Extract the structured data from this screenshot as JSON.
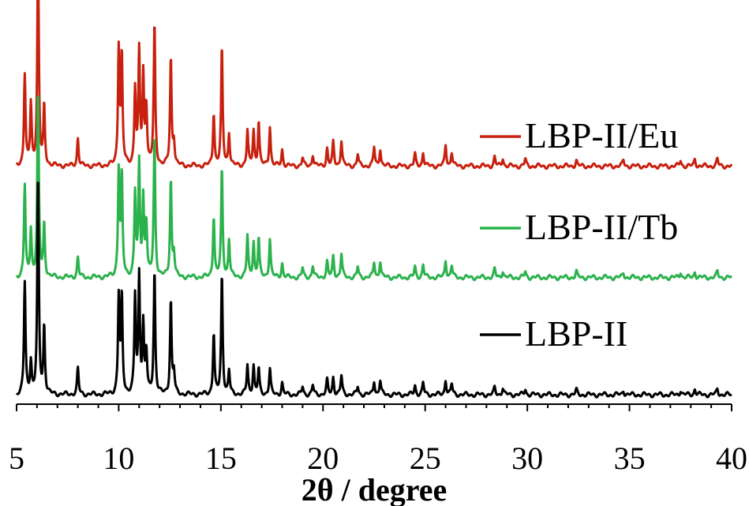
{
  "chart_data": {
    "type": "line",
    "title": "",
    "xlabel": "2θ / degree",
    "ylabel": "",
    "xlim": [
      5,
      40
    ],
    "ylim": [
      0,
      3.3
    ],
    "x_ticks": [
      "5",
      "10",
      "15",
      "20",
      "25",
      "30",
      "35",
      "40"
    ],
    "grid": false,
    "legend_position": "right",
    "series": [
      {
        "name": "LBP-II/Eu",
        "color": "#c8200e",
        "offset": 1.95,
        "peaks": [
          [
            5.4,
            0.78
          ],
          [
            5.7,
            0.52
          ],
          [
            6.05,
            1.8
          ],
          [
            6.35,
            0.5
          ],
          [
            8.0,
            0.24
          ],
          [
            10.0,
            1.0
          ],
          [
            10.15,
            0.92
          ],
          [
            10.8,
            0.65
          ],
          [
            11.0,
            0.95
          ],
          [
            11.2,
            0.75
          ],
          [
            11.35,
            0.5
          ],
          [
            11.75,
            1.2
          ],
          [
            12.55,
            0.92
          ],
          [
            12.7,
            0.2
          ],
          [
            14.65,
            0.45
          ],
          [
            15.05,
            1.0
          ],
          [
            15.4,
            0.28
          ],
          [
            16.3,
            0.3
          ],
          [
            16.6,
            0.3
          ],
          [
            16.85,
            0.38
          ],
          [
            17.4,
            0.34
          ],
          [
            18.0,
            0.14
          ],
          [
            19.0,
            0.07
          ],
          [
            19.5,
            0.1
          ],
          [
            20.2,
            0.15
          ],
          [
            20.5,
            0.2
          ],
          [
            20.9,
            0.22
          ],
          [
            21.7,
            0.1
          ],
          [
            22.5,
            0.16
          ],
          [
            22.8,
            0.15
          ],
          [
            24.5,
            0.1
          ],
          [
            24.9,
            0.12
          ],
          [
            26.0,
            0.18
          ],
          [
            26.3,
            0.12
          ],
          [
            28.4,
            0.08
          ],
          [
            28.8,
            0.07
          ],
          [
            29.9,
            0.06
          ],
          [
            32.4,
            0.05
          ],
          [
            34.7,
            0.05
          ],
          [
            37.5,
            0.05
          ],
          [
            38.2,
            0.06
          ],
          [
            39.3,
            0.06
          ]
        ]
      },
      {
        "name": "LBP-II/Tb",
        "color": "#2bb24c",
        "offset": 1.0,
        "peaks": [
          [
            5.4,
            0.78
          ],
          [
            5.7,
            0.4
          ],
          [
            6.05,
            1.58
          ],
          [
            6.35,
            0.45
          ],
          [
            8.0,
            0.17
          ],
          [
            10.0,
            0.9
          ],
          [
            10.15,
            0.85
          ],
          [
            10.8,
            0.7
          ],
          [
            11.0,
            0.95
          ],
          [
            11.2,
            0.65
          ],
          [
            11.35,
            0.45
          ],
          [
            11.75,
            1.2
          ],
          [
            12.55,
            0.83
          ],
          [
            12.7,
            0.2
          ],
          [
            14.65,
            0.52
          ],
          [
            15.05,
            0.92
          ],
          [
            15.4,
            0.32
          ],
          [
            16.3,
            0.35
          ],
          [
            16.6,
            0.3
          ],
          [
            16.85,
            0.33
          ],
          [
            17.4,
            0.33
          ],
          [
            18.0,
            0.12
          ],
          [
            19.0,
            0.08
          ],
          [
            19.5,
            0.1
          ],
          [
            20.2,
            0.13
          ],
          [
            20.5,
            0.18
          ],
          [
            20.9,
            0.2
          ],
          [
            21.7,
            0.09
          ],
          [
            22.5,
            0.13
          ],
          [
            22.8,
            0.14
          ],
          [
            24.5,
            0.09
          ],
          [
            24.9,
            0.11
          ],
          [
            26.0,
            0.15
          ],
          [
            26.3,
            0.1
          ],
          [
            28.4,
            0.07
          ],
          [
            28.8,
            0.06
          ],
          [
            29.9,
            0.05
          ],
          [
            32.4,
            0.05
          ],
          [
            34.7,
            0.04
          ],
          [
            37.5,
            0.05
          ],
          [
            38.2,
            0.05
          ],
          [
            39.3,
            0.05
          ]
        ]
      },
      {
        "name": "LBP-II",
        "color": "#000000",
        "offset": 0.0,
        "peaks": [
          [
            5.4,
            0.95
          ],
          [
            5.7,
            0.28
          ],
          [
            6.05,
            1.85
          ],
          [
            6.35,
            0.58
          ],
          [
            8.0,
            0.22
          ],
          [
            10.0,
            0.82
          ],
          [
            10.15,
            0.82
          ],
          [
            10.8,
            0.82
          ],
          [
            11.0,
            1.0
          ],
          [
            11.2,
            0.58
          ],
          [
            11.35,
            0.35
          ],
          [
            11.75,
            1.05
          ],
          [
            12.55,
            0.8
          ],
          [
            12.7,
            0.18
          ],
          [
            14.65,
            0.52
          ],
          [
            15.05,
            1.02
          ],
          [
            15.4,
            0.2
          ],
          [
            16.3,
            0.25
          ],
          [
            16.6,
            0.25
          ],
          [
            16.85,
            0.22
          ],
          [
            17.4,
            0.22
          ],
          [
            18.0,
            0.1
          ],
          [
            19.0,
            0.07
          ],
          [
            19.5,
            0.08
          ],
          [
            20.2,
            0.12
          ],
          [
            20.5,
            0.15
          ],
          [
            20.9,
            0.16
          ],
          [
            21.7,
            0.07
          ],
          [
            22.5,
            0.12
          ],
          [
            22.8,
            0.12
          ],
          [
            24.5,
            0.08
          ],
          [
            24.9,
            0.1
          ],
          [
            26.0,
            0.13
          ],
          [
            26.3,
            0.09
          ],
          [
            28.4,
            0.06
          ],
          [
            28.8,
            0.06
          ],
          [
            29.9,
            0.05
          ],
          [
            32.4,
            0.04
          ],
          [
            34.7,
            0.04
          ],
          [
            37.5,
            0.04
          ],
          [
            38.2,
            0.05
          ],
          [
            39.3,
            0.05
          ]
        ]
      }
    ]
  }
}
